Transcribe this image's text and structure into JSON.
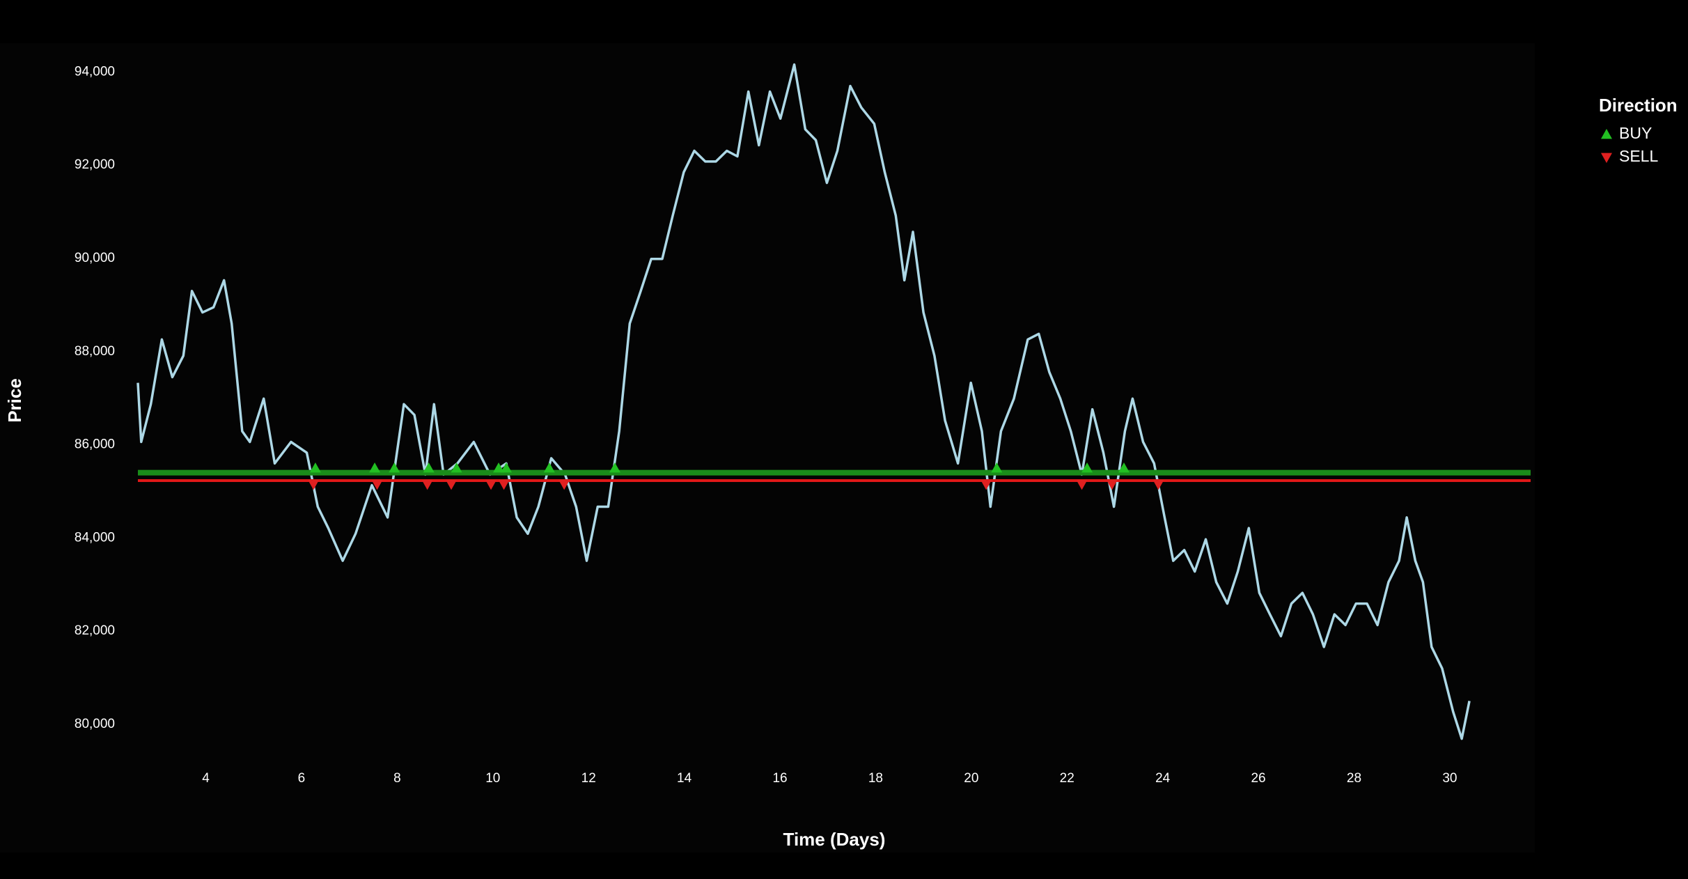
{
  "chart_data": {
    "type": "line",
    "x_label": "Time (Days)",
    "y_label": "Price",
    "xlim": [
      2.58,
      31.69
    ],
    "ylim": [
      79250,
      94500
    ],
    "xticks": [
      4,
      6,
      8,
      10,
      12,
      14,
      16,
      18,
      20,
      22,
      24,
      26,
      28,
      30
    ],
    "yticks": [
      {
        "value": 80000,
        "label": "80,000"
      },
      {
        "value": 82000,
        "label": "82,000"
      },
      {
        "value": 84000,
        "label": "84,000"
      },
      {
        "value": 86000,
        "label": "86,000"
      },
      {
        "value": 88000,
        "label": "88,000"
      },
      {
        "value": 90000,
        "label": "90,000"
      },
      {
        "value": 92000,
        "label": "92,000"
      },
      {
        "value": 94000,
        "label": "94,000"
      }
    ],
    "grid": false,
    "line": {
      "color": "#add8e6",
      "x": [
        2.58,
        2.65,
        2.85,
        3.08,
        3.3,
        3.53,
        3.71,
        3.93,
        4.16,
        4.38,
        4.54,
        4.76,
        4.92,
        5.21,
        5.44,
        5.78,
        6.11,
        6.34,
        6.56,
        6.86,
        7.13,
        7.47,
        7.8,
        8.14,
        8.36,
        8.59,
        8.77,
        8.97,
        9.26,
        9.6,
        9.94,
        10.28,
        10.5,
        10.73,
        10.95,
        11.22,
        11.51,
        11.74,
        11.96,
        12.19,
        12.41,
        12.64,
        12.86,
        13.09,
        13.31,
        13.54,
        13.76,
        13.99,
        14.21,
        14.44,
        14.66,
        14.89,
        15.11,
        15.34,
        15.56,
        15.79,
        16.01,
        16.3,
        16.53,
        16.75,
        16.98,
        17.2,
        17.47,
        17.7,
        17.97,
        18.19,
        18.42,
        18.6,
        18.78,
        19.0,
        19.23,
        19.45,
        19.72,
        19.99,
        20.22,
        20.4,
        20.62,
        20.89,
        21.18,
        21.41,
        21.63,
        21.86,
        22.08,
        22.31,
        22.53,
        22.76,
        22.98,
        23.21,
        23.37,
        23.59,
        23.82,
        24.04,
        24.22,
        24.45,
        24.67,
        24.9,
        25.12,
        25.35,
        25.57,
        25.8,
        26.02,
        26.24,
        26.47,
        26.69,
        26.92,
        27.14,
        27.37,
        27.59,
        27.82,
        28.04,
        28.27,
        28.49,
        28.72,
        28.94,
        29.1,
        29.28,
        29.44,
        29.62,
        29.84,
        30.07,
        30.25,
        30.41
      ],
      "values": [
        87330,
        86060,
        86870,
        88260,
        87450,
        87910,
        89300,
        88840,
        88950,
        89530,
        88600,
        86290,
        86060,
        86990,
        85600,
        86060,
        85830,
        84670,
        84210,
        83510,
        84090,
        85130,
        84440,
        86870,
        86640,
        85360,
        86870,
        85360,
        85600,
        86060,
        85360,
        85600,
        84440,
        84090,
        84670,
        85710,
        85360,
        84670,
        83510,
        84670,
        84670,
        86290,
        88600,
        89300,
        89990,
        89990,
        90920,
        91850,
        92310,
        92080,
        92080,
        92310,
        92190,
        93580,
        92430,
        93580,
        93000,
        94160,
        92770,
        92540,
        91620,
        92310,
        93700,
        93240,
        92890,
        91850,
        90920,
        89530,
        90570,
        88840,
        87910,
        86520,
        85600,
        87330,
        86290,
        84670,
        86290,
        86990,
        88260,
        88380,
        87560,
        86990,
        86290,
        85360,
        86760,
        85830,
        84670,
        86290,
        86990,
        86060,
        85600,
        84440,
        83510,
        83740,
        83280,
        83970,
        83050,
        82590,
        83280,
        84210,
        82820,
        82360,
        81890,
        82590,
        82820,
        82360,
        81660,
        82360,
        82130,
        82590,
        82590,
        82130,
        83050,
        83510,
        84440,
        83510,
        83050,
        81660,
        81200,
        80270,
        79690,
        80500
      ]
    },
    "levels": [
      {
        "value": 85400,
        "color": "#1a8c1a"
      },
      {
        "value": 85230,
        "color": "#e01818"
      }
    ],
    "legend_title": "Direction",
    "legend_position": "right",
    "markers": [
      {
        "name": "BUY",
        "color": "#22c022",
        "symbol": "triangle-up",
        "x": [
          6.29,
          7.53,
          7.94,
          8.66,
          9.24,
          10.12,
          10.28,
          11.18,
          12.55,
          20.53,
          22.42,
          23.19
        ],
        "values": [
          85500,
          85500,
          85500,
          85500,
          85500,
          85500,
          85500,
          85500,
          85500,
          85500,
          85500,
          85500
        ]
      },
      {
        "name": "SELL",
        "color": "#e02020",
        "symbol": "triangle-down",
        "x": [
          6.25,
          7.58,
          8.63,
          9.13,
          9.96,
          10.23,
          11.49,
          20.31,
          22.31,
          22.94,
          23.91
        ],
        "values": [
          85150,
          85150,
          85150,
          85150,
          85150,
          85150,
          85150,
          85150,
          85150,
          85150,
          85150
        ]
      }
    ]
  }
}
